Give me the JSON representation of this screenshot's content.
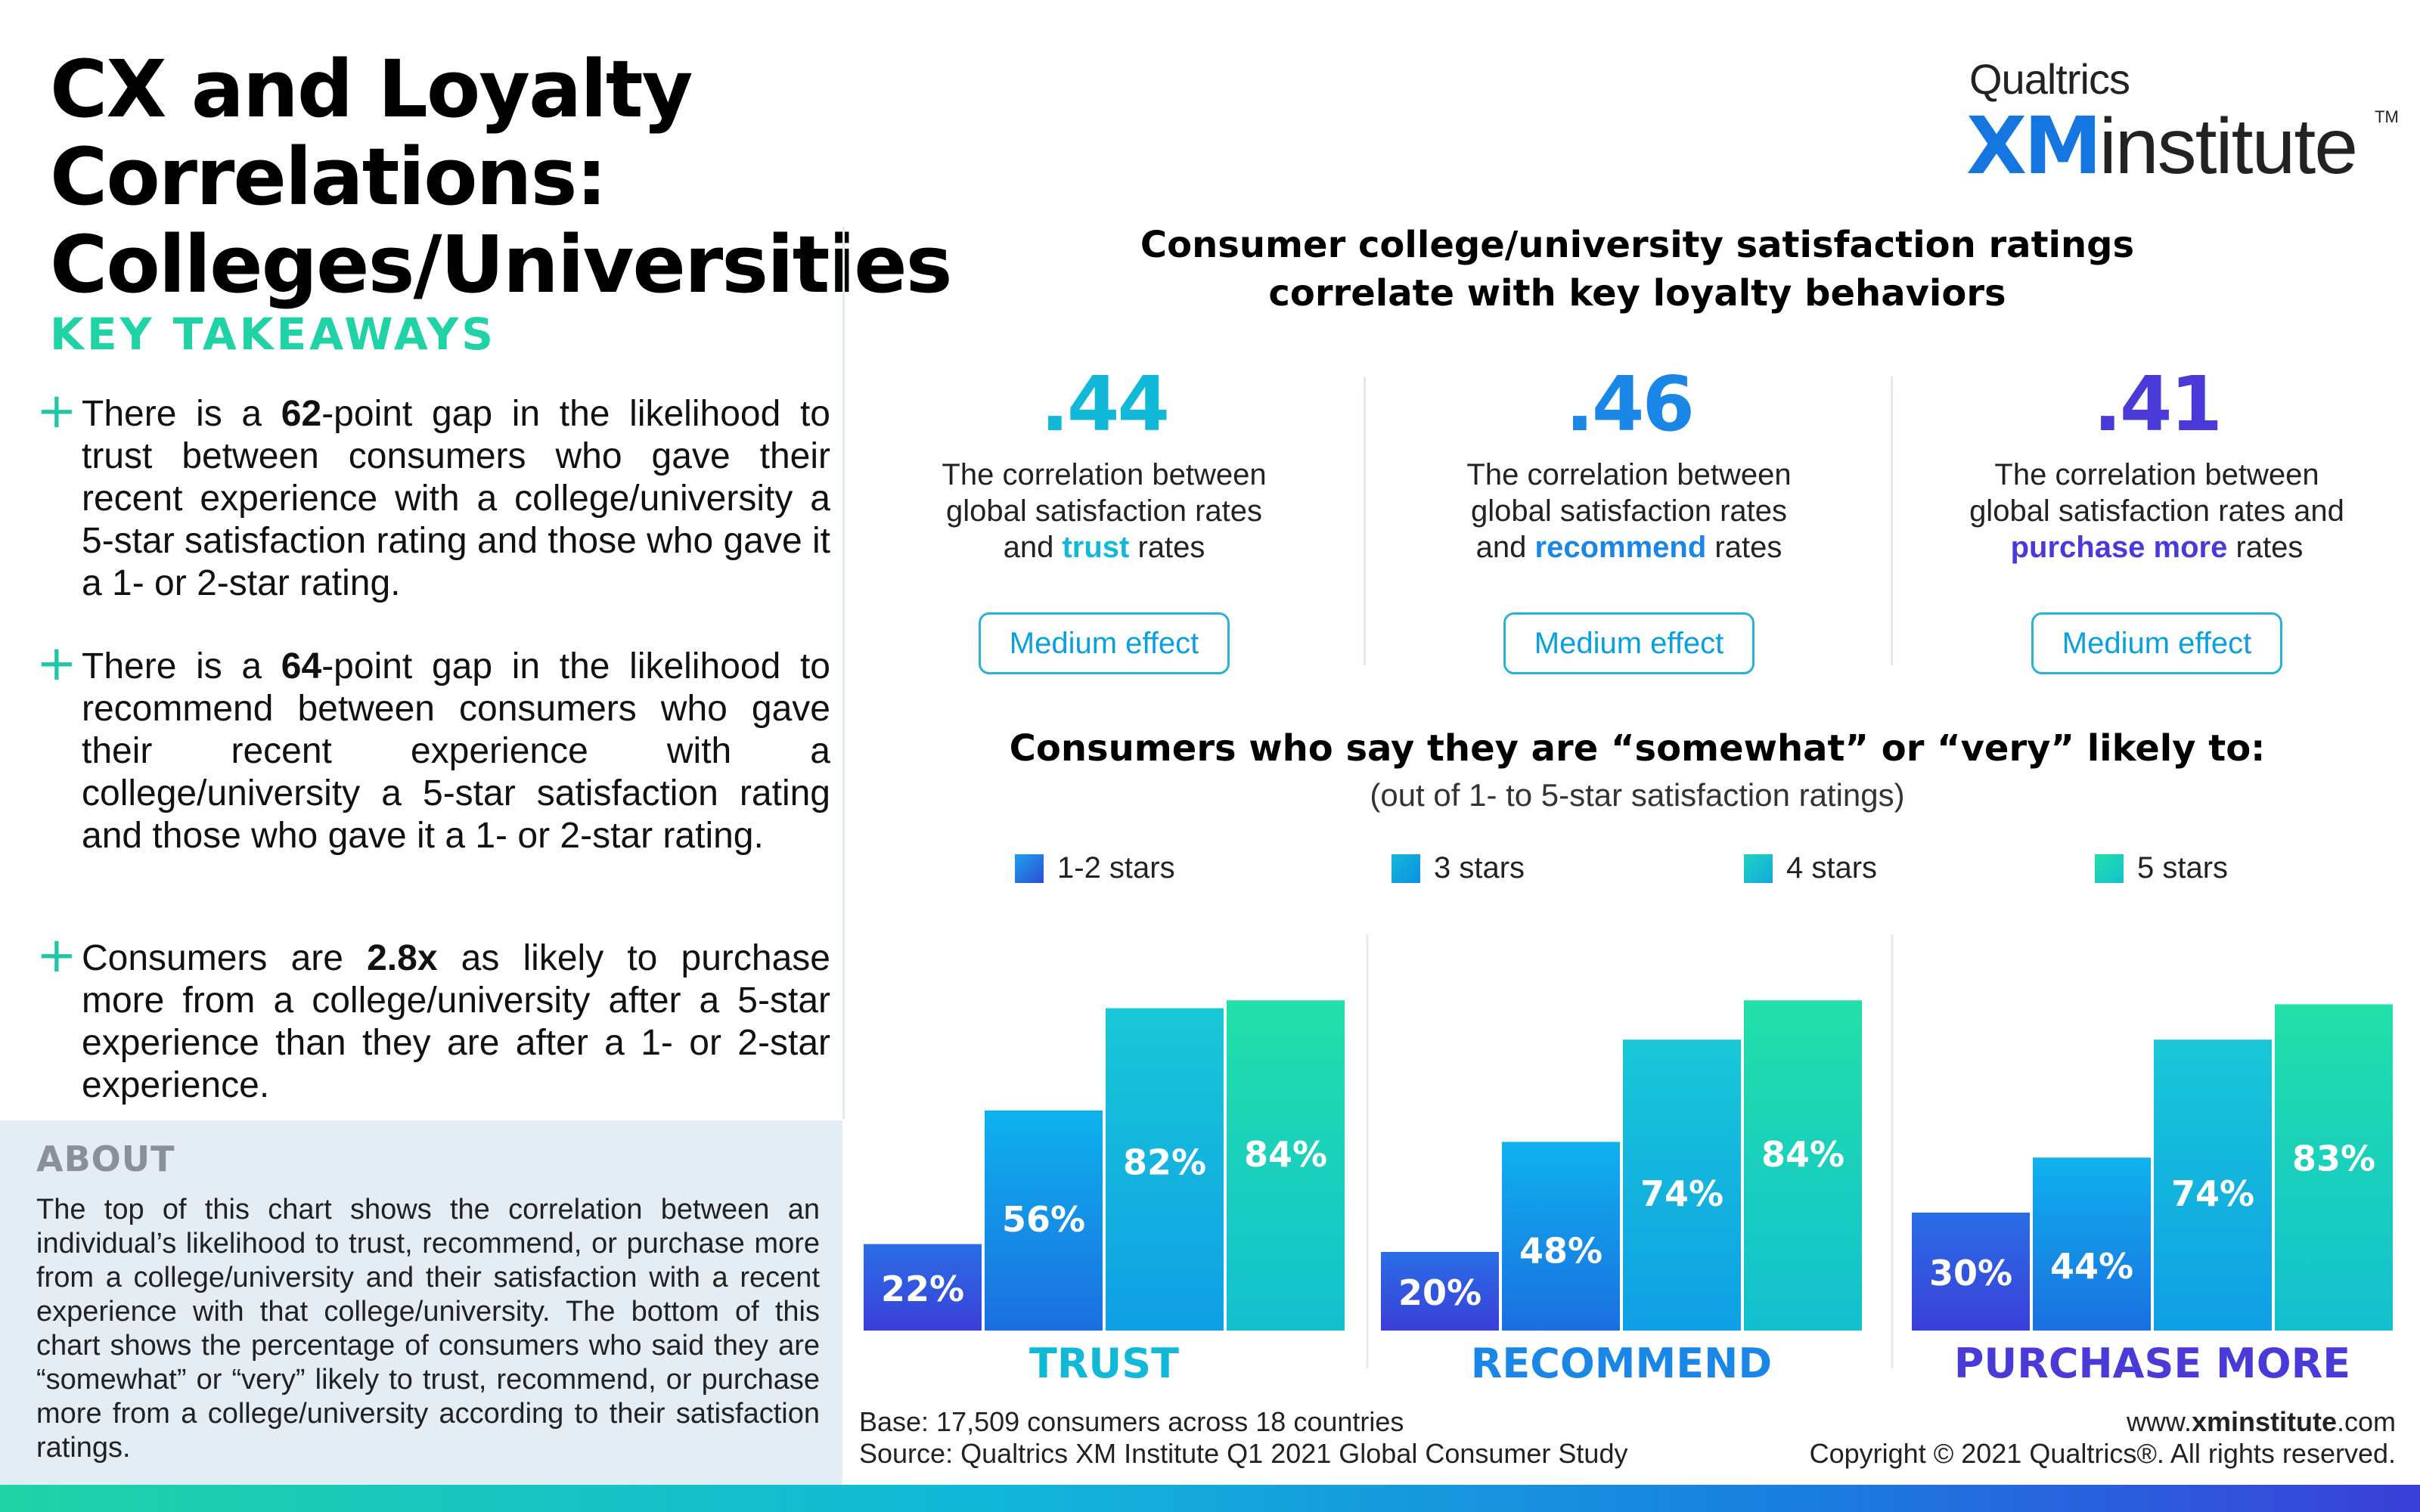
{
  "title": {
    "line1": "CX and Loyalty Correlations:",
    "line2": "Colleges/Universities"
  },
  "logo": {
    "brand": "Qualtrics",
    "xm": "XM",
    "institute": "institute",
    "tm": "TM"
  },
  "key_takeaways": {
    "heading": "KEY TAKEAWAYS",
    "items": [
      {
        "pre": "There is a ",
        "bold": "62",
        "post": "-point gap in the likelihood to trust between consumers who gave their recent experience with a college/university a 5-star satisfaction rating and those who gave it a 1- or 2-star rating."
      },
      {
        "pre": "There is a ",
        "bold": "64",
        "post": "-point gap in the likelihood to recommend between consumers who gave their recent experience with a college/university a 5-star satisfaction rating and those who gave it a 1- or 2-star rating."
      },
      {
        "pre": "Consumers are ",
        "bold": "2.8x",
        "post": " as likely to purchase more from a college/university after a 5-star experience than they are after a 1- or 2-star experience."
      }
    ]
  },
  "about": {
    "heading": "ABOUT",
    "text": "The top of this chart shows the correlation between an individual’s likelihood to trust, recommend, or purchase more from a college/university and their satisfaction with a recent experience with that college/university. The bottom of this chart shows the percentage of consumers who said they are “somewhat” or “very” likely to trust, recommend, or purchase more from a college/university according to their satisfaction ratings."
  },
  "correlations": {
    "title_line1": "Consumer college/university satisfaction ratings",
    "title_line2": "correlate with key loyalty behaviors",
    "items": [
      {
        "value": ".44",
        "color": "#12b8d8",
        "desc_line1": "The correlation between",
        "desc_line2": "global satisfaction rates",
        "desc_pre": "and ",
        "desc_bold": "trust",
        "desc_post": " rates",
        "effect_bold": "Medium",
        "effect_rest": " effect"
      },
      {
        "value": ".46",
        "color": "#1a86e6",
        "desc_line1": "The correlation between",
        "desc_line2": "global satisfaction rates",
        "desc_pre": "and ",
        "desc_bold": "recommend",
        "desc_post": " rates",
        "effect_bold": "Medium",
        "effect_rest": " effect"
      },
      {
        "value": ".41",
        "color": "#4a3bd8",
        "desc_line1": "The correlation between",
        "desc_line2": "global satisfaction rates and",
        "desc_pre": "",
        "desc_bold": "purchase more",
        "desc_post": " rates",
        "effect_bold": "Medium",
        "effect_rest": " effect"
      }
    ]
  },
  "chart_data": {
    "type": "bar",
    "title": "Consumers who say they are “somewhat” or “very” likely to:",
    "subtitle": "(out of 1- to 5-star satisfaction ratings)",
    "categories": [
      "TRUST",
      "RECOMMEND",
      "PURCHASE MORE"
    ],
    "category_colors": [
      "#12b8d8",
      "#1a86e6",
      "#4a3bd8"
    ],
    "series": [
      {
        "name": "1-2 stars",
        "values": [
          22,
          20,
          30
        ],
        "labels": [
          "22%",
          "20%",
          "30%"
        ],
        "color": "#2b5fe0"
      },
      {
        "name": "3 stars",
        "values": [
          56,
          48,
          44
        ],
        "labels": [
          "56%",
          "48%",
          "44%"
        ],
        "color": "#0f9fe6"
      },
      {
        "name": "4 stars",
        "values": [
          82,
          74,
          74
        ],
        "labels": [
          "82%",
          "74%",
          "74%"
        ],
        "color": "#12b8d8"
      },
      {
        "name": "5 stars",
        "values": [
          84,
          84,
          83
        ],
        "labels": [
          "84%",
          "84%",
          "83%"
        ],
        "color": "#1fd3a6"
      }
    ],
    "ylim": [
      0,
      100
    ],
    "xlabel": "",
    "ylabel": "",
    "legend": "top",
    "grid": false
  },
  "footer": {
    "base": "Base: 17,509 consumers across 18 countries",
    "source": "Source: Qualtrics XM Institute Q1 2021 Global Consumer Study",
    "url_pre": "www.",
    "url_bold": "xminstitute",
    "url_post": ".com",
    "copyright": "Copyright © 2021 Qualtrics®. All rights reserved."
  }
}
